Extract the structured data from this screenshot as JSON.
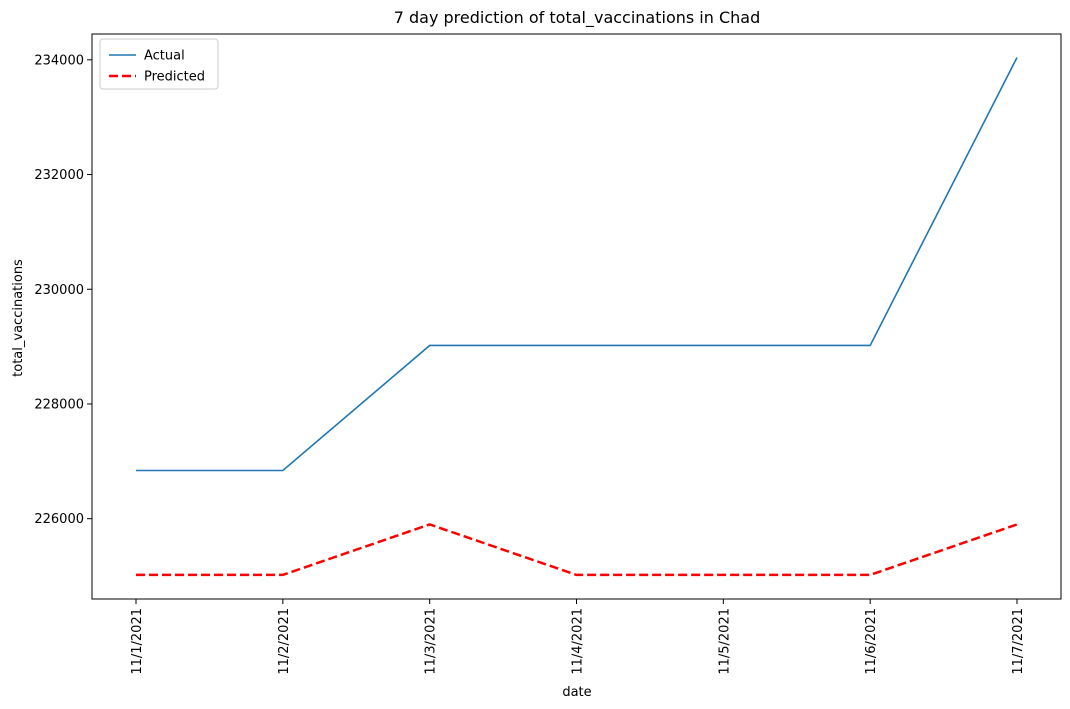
{
  "chart_data": {
    "type": "line",
    "title": "7 day prediction of total_vaccinations in Chad",
    "xlabel": "date",
    "ylabel": "total_vaccinations",
    "categories": [
      "11/1/2021",
      "11/2/2021",
      "11/3/2021",
      "11/4/2021",
      "11/5/2021",
      "11/6/2021",
      "11/7/2021"
    ],
    "series": [
      {
        "name": "Actual",
        "values": [
          226840,
          226840,
          229020,
          229020,
          229020,
          229020,
          234040
        ],
        "color": "#1f77b4",
        "style": "solid"
      },
      {
        "name": "Predicted",
        "values": [
          225020,
          225020,
          225900,
          225020,
          225020,
          225020,
          225900
        ],
        "color": "#ff0000",
        "style": "dashed"
      }
    ],
    "ylim": [
      224600,
      234450
    ],
    "yticks": [
      226000,
      228000,
      230000,
      232000,
      234000
    ],
    "grid": false,
    "legend": "top-left"
  }
}
